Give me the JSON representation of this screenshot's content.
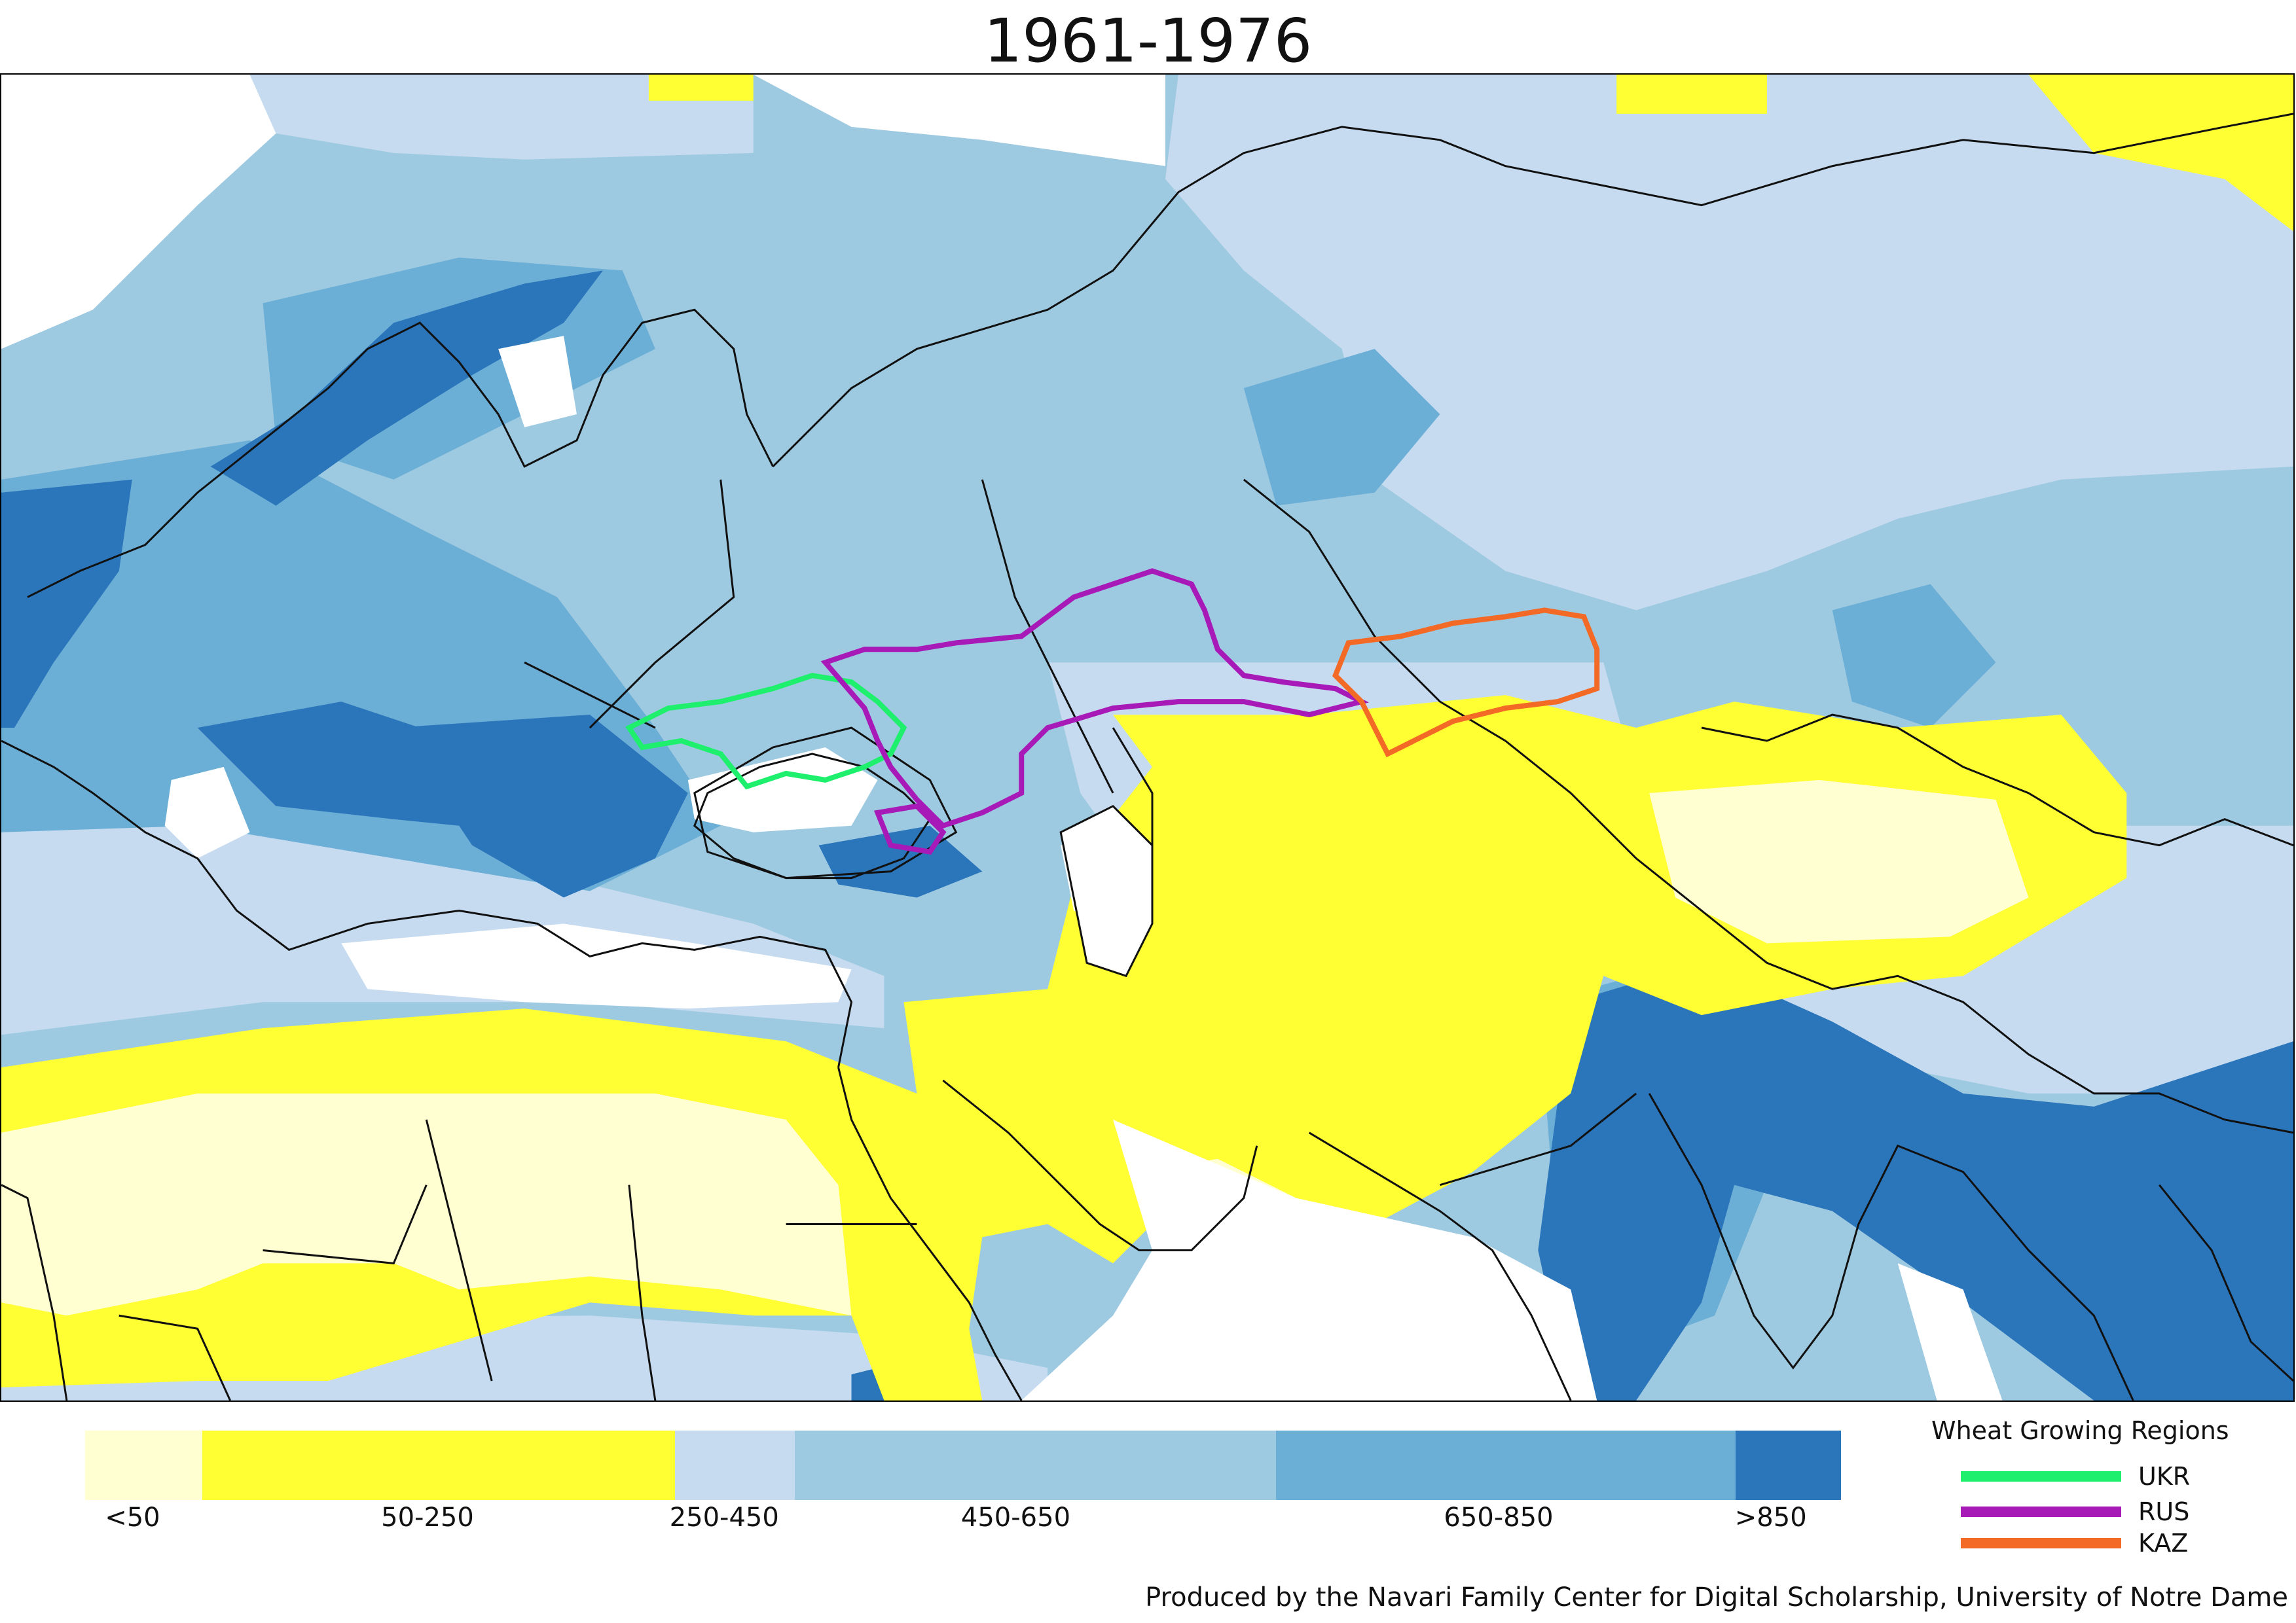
{
  "title": "1961-1976",
  "colors": {
    "white_zone": "#ffffff",
    "lt50": "#ffffd2",
    "c50_250": "#ffff33",
    "c250_450": "#c6dbef",
    "c450_650": "#9ecae1",
    "c650_850": "#6baed6",
    "gt850": "#2b75ba",
    "border": "#111111"
  },
  "colorbar": {
    "segments": [
      {
        "color": "#ffffd2",
        "weight": 80
      },
      {
        "color": "#ffff33",
        "weight": 322
      },
      {
        "color": "#c6dbef",
        "weight": 82
      },
      {
        "color": "#9ecae1",
        "weight": 328
      },
      {
        "color": "#6baed6",
        "weight": 313
      },
      {
        "color": "#2b75ba",
        "weight": 72
      }
    ],
    "labels": [
      {
        "text": "<50",
        "pos": 0.027
      },
      {
        "text": "50-250",
        "pos": 0.195
      },
      {
        "text": "250-450",
        "pos": 0.364
      },
      {
        "text": "450-650",
        "pos": 0.53
      },
      {
        "text": "650-850",
        "pos": 0.805
      },
      {
        "text": ">850",
        "pos": 0.96
      }
    ]
  },
  "legend": {
    "title": "Wheat Growing Regions",
    "items": [
      {
        "label": "UKR",
        "color": "#1ef06e"
      },
      {
        "label": "RUS",
        "color": "#a81ab8"
      },
      {
        "label": "KAZ",
        "color": "#f26a26"
      }
    ]
  },
  "credit": "Produced by the Navari Family Center for Digital Scholarship, University of Notre Dame"
}
